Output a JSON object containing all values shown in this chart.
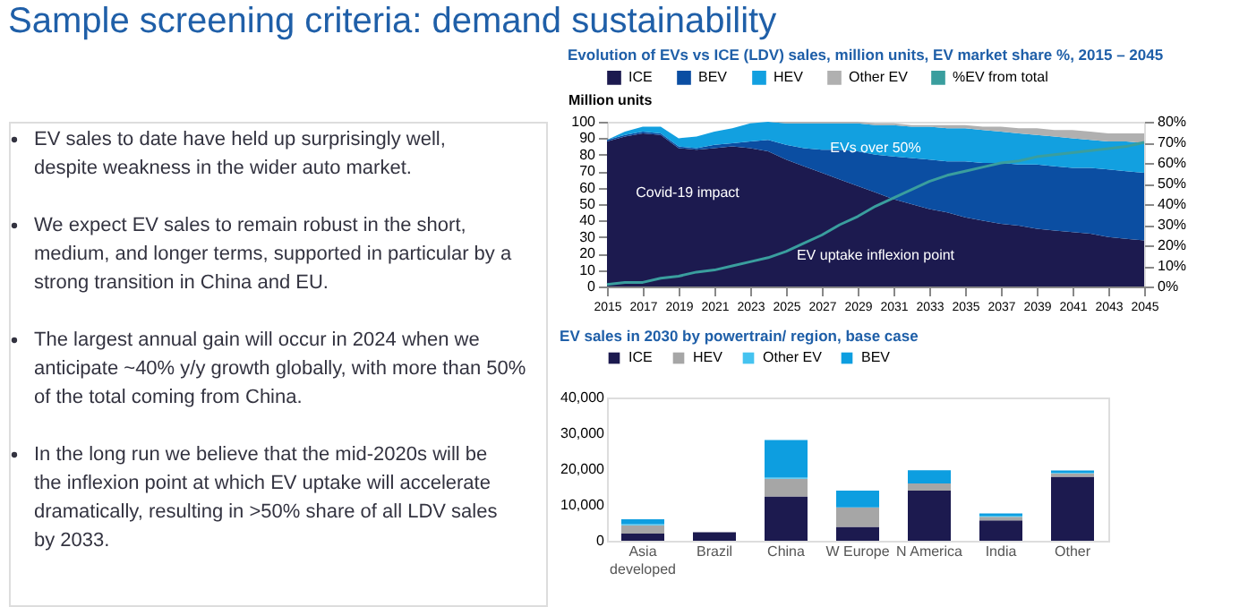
{
  "chart_data": [
    {
      "type": "other",
      "title": "Sample screening criteria: demand sustainability",
      "annotations": [
        "EV sales to date have held up surprisingly well, despite weakness in the wider auto market.",
        "We expect EV sales to remain robust in the short, medium, and longer terms, supported in particular by a strong transition in China and EU.",
        "The largest annual gain will occur in 2024 when we anticipate ~40% y/y growth globally, with more than 50% of the total coming from China.",
        "In the long run we believe that the mid-2020s will be the inflexion point at which EV uptake will accelerate dramatically, resulting in >50% share of all LDV sales by 2033."
      ]
    },
    {
      "type": "area",
      "stacked": true,
      "title": "Evolution of EVs vs ICE (LDV) sales, million units, EV market share %, 2015 – 2045",
      "ylabel": "Million units",
      "legend": "top",
      "grid": false,
      "x": [
        2015,
        2016,
        2017,
        2018,
        2019,
        2020,
        2021,
        2022,
        2023,
        2024,
        2025,
        2026,
        2027,
        2028,
        2029,
        2030,
        2031,
        2032,
        2033,
        2034,
        2035,
        2036,
        2037,
        2038,
        2039,
        2040,
        2041,
        2042,
        2043,
        2044,
        2045
      ],
      "xlim": [
        2015,
        2045
      ],
      "xticks": [
        2015,
        2017,
        2019,
        2021,
        2023,
        2025,
        2027,
        2029,
        2031,
        2033,
        2035,
        2037,
        2039,
        2041,
        2043,
        2045
      ],
      "ylim": [
        0,
        100
      ],
      "yticks": [
        0,
        10,
        20,
        30,
        40,
        50,
        60,
        70,
        80,
        90,
        100
      ],
      "y2lim": [
        0,
        80
      ],
      "y2ticks": [
        {
          "value": 0,
          "label": "0%"
        },
        {
          "value": 10,
          "label": "10%"
        },
        {
          "value": 20,
          "label": "20%"
        },
        {
          "value": 30,
          "label": "30%"
        },
        {
          "value": 40,
          "label": "40%"
        },
        {
          "value": 50,
          "label": "50%"
        },
        {
          "value": 60,
          "label": "60%"
        },
        {
          "value": 70,
          "label": "70%"
        },
        {
          "value": 80,
          "label": "80%"
        }
      ],
      "series": [
        {
          "name": "ICE",
          "color": "#1c1a4f",
          "values": [
            88,
            91,
            93,
            92,
            84,
            83,
            84,
            85,
            84,
            82,
            77,
            73,
            69,
            65,
            61,
            57,
            53,
            50,
            47,
            45,
            42,
            40,
            38,
            37,
            35,
            34,
            33,
            32,
            30,
            29,
            28
          ]
        },
        {
          "name": "BEV",
          "color": "#0b4ea2",
          "values": [
            1,
            1,
            1,
            1,
            1,
            1,
            2,
            2,
            4,
            7,
            9,
            11,
            14,
            18,
            21,
            23,
            26,
            28,
            30,
            31,
            34,
            35,
            37,
            37,
            39,
            39,
            39,
            40,
            41,
            41,
            41
          ]
        },
        {
          "name": "HEV",
          "color": "#12a0e0",
          "values": [
            0,
            2,
            3,
            4,
            5,
            7,
            8,
            9,
            11,
            11,
            13,
            15,
            16,
            16,
            17,
            18,
            19,
            19,
            20,
            20,
            20,
            20,
            19,
            19,
            18,
            18,
            18,
            17,
            17,
            18,
            18
          ]
        },
        {
          "name": "Other EV",
          "color": "#b0b0b0",
          "values": [
            0,
            0,
            0,
            0,
            0,
            0,
            0,
            0,
            0,
            0,
            1,
            1,
            1,
            1,
            1,
            1,
            1,
            1,
            1,
            2,
            2,
            2,
            3,
            3,
            4,
            4,
            5,
            5,
            5,
            5,
            6
          ]
        },
        {
          "name": "%EV from total",
          "color": "#3a9e9e",
          "type": "line",
          "axis": "y2",
          "values": [
            1,
            2,
            2,
            4,
            5,
            7,
            8,
            10,
            12,
            14,
            17,
            21,
            25,
            30,
            34,
            39,
            43,
            47,
            51,
            54,
            56,
            58,
            60,
            61,
            63,
            64,
            65,
            66,
            67,
            68,
            70
          ]
        }
      ],
      "annotations": [
        "Covid-19 impact",
        "EVs over 50%",
        "EV uptake inflexion point"
      ]
    },
    {
      "type": "bar",
      "stacked": true,
      "title": "EV sales in 2030 by powertrain/ region, base case",
      "legend": "top",
      "grid": false,
      "categories": [
        "Asia developed",
        "Brazil",
        "China",
        "W Europe",
        "N America",
        "India",
        "Other"
      ],
      "ylim": [
        0,
        40000
      ],
      "yticks": [
        0,
        {
          "value": 10000,
          "label": "10,000"
        },
        {
          "value": 20000,
          "label": "20,000"
        },
        {
          "value": 30000,
          "label": "30,000"
        },
        {
          "value": 40000,
          "label": "40,000"
        }
      ],
      "series": [
        {
          "name": "ICE",
          "color": "#1c1a4f",
          "values": [
            2000,
            2400,
            12400,
            3900,
            14000,
            5700,
            17900
          ]
        },
        {
          "name": "HEV",
          "color": "#a6a6a6",
          "values": [
            2300,
            0,
            4900,
            5400,
            2000,
            1000,
            900
          ]
        },
        {
          "name": "Other EV",
          "color": "#45c3f0",
          "values": [
            300,
            0,
            300,
            0,
            0,
            300,
            200
          ]
        },
        {
          "name": "BEV",
          "color": "#0d9ee0",
          "values": [
            1400,
            0,
            10500,
            4700,
            3700,
            600,
            600
          ]
        }
      ]
    }
  ]
}
